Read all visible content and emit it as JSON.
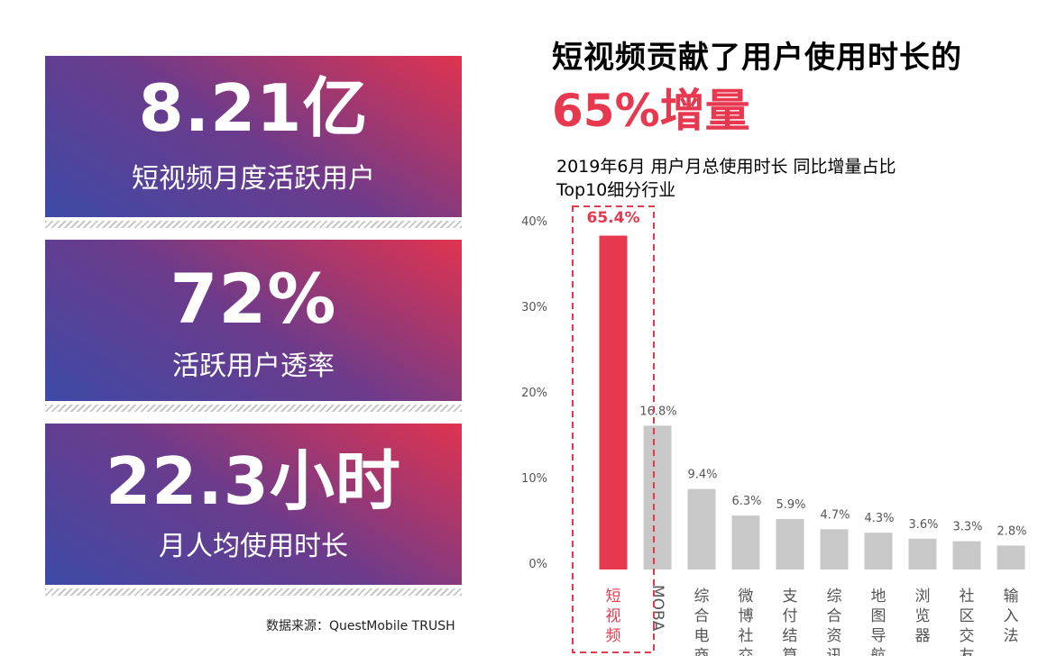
{
  "stats": [
    {
      "value": "8.21亿",
      "label": "短视频月度活跃用户"
    },
    {
      "value": "72%",
      "label": "活跃用户透率"
    },
    {
      "value": "22.3小时",
      "label": "月人均使用时长"
    }
  ],
  "source": "数据来源：QuestMobile TRUSH",
  "headline": "短视频贡献了用户使用时长的",
  "highlight": "65%增量",
  "colors": {
    "accent": "#e8384f",
    "bar": "#c8c8c8",
    "card_start": "#3d4aa6",
    "card_end": "#e0334f"
  },
  "chart_data": {
    "type": "bar",
    "title": "2019年6月 用户月总使用时长 同比增量占比\nTop10细分行业",
    "categories": [
      "短视频",
      "MOBA",
      "综合电商",
      "微博社交",
      "支付结算",
      "综合资讯",
      "地图导航",
      "浏览器",
      "社区交友",
      "输入法"
    ],
    "values": [
      65.4,
      16.8,
      9.4,
      6.3,
      5.9,
      4.7,
      4.3,
      3.6,
      3.3,
      2.8
    ],
    "value_labels": [
      "65.4%",
      "16.8%",
      "9.4%",
      "6.3%",
      "5.9%",
      "4.7%",
      "4.3%",
      "3.6%",
      "3.3%",
      "2.8%"
    ],
    "yticks": [
      "0%",
      "10%",
      "20%",
      "30%",
      "40%"
    ],
    "ylim": [
      0,
      40
    ],
    "highlight_index": 0,
    "axis_break": true,
    "grid": false
  }
}
